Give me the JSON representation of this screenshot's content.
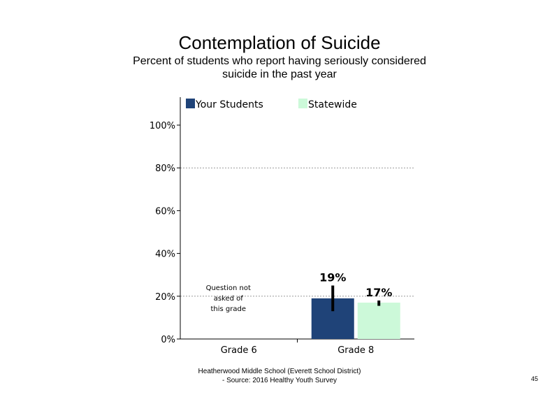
{
  "page": {
    "title": "Contemplation of Suicide",
    "subtitle": "Percent of students who report having seriously considered suicide in the past year",
    "footer_line1": "Heatherwood Middle School (Everett School District)",
    "footer_line2": "- Source: 2016 Healthy Youth Survey",
    "page_number": "45"
  },
  "chart_data": {
    "type": "bar",
    "title": "Contemplation of Suicide",
    "categories": [
      "Grade 6",
      "Grade 8"
    ],
    "series": [
      {
        "name": "Your Students",
        "color": "#1f4378",
        "values": [
          null,
          19
        ],
        "error": [
          null,
          [
            13,
            25
          ]
        ]
      },
      {
        "name": "Statewide",
        "color": "#ccf9d9",
        "values": [
          null,
          17
        ],
        "error": [
          null,
          [
            15.5,
            18
          ]
        ]
      }
    ],
    "data_labels": [
      "19%",
      "17%"
    ],
    "ylim": [
      0,
      100
    ],
    "yticks": [
      "0%",
      "20%",
      "40%",
      "60%",
      "80%",
      "100%"
    ],
    "grid": "dotted horizontal at 20% and 80%",
    "legend_position": "top",
    "annotation": "Question not asked of this grade"
  }
}
